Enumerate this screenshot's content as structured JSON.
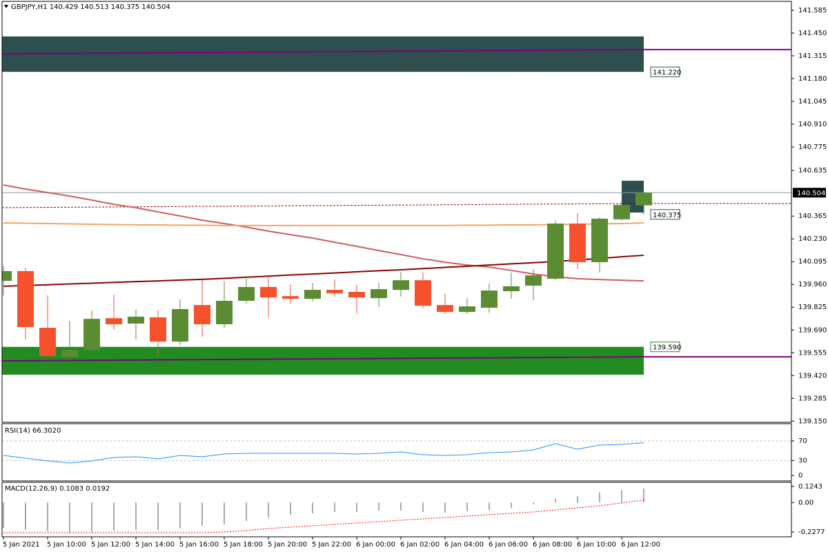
{
  "chart_data": [
    {
      "type": "candlestick",
      "title": "GBPJPY,H1  140.429 140.513 140.375 140.504",
      "categories": [
        "5 Jan 2021",
        null,
        "5 Jan 10:00",
        null,
        "5 Jan 12:00",
        null,
        "5 Jan 14:00",
        null,
        "5 Jan 16:00",
        null,
        "5 Jan 18:00",
        null,
        "5 Jan 20:00",
        null,
        "5 Jan 22:00",
        null,
        "6 Jan 00:00",
        null,
        "6 Jan 02:00",
        null,
        "6 Jan 04:00",
        null,
        "6 Jan 06:00",
        null,
        "6 Jan 08:00",
        null,
        "6 Jan 10:00",
        null,
        "6 Jan 12:00",
        null
      ],
      "open": [
        139.981,
        140.039,
        139.703,
        139.531,
        139.572,
        139.76,
        139.728,
        139.765,
        139.621,
        139.838,
        139.724,
        139.863,
        139.945,
        139.891,
        139.875,
        139.928,
        139.916,
        139.879,
        139.928,
        139.985,
        139.838,
        139.797,
        139.822,
        139.92,
        139.953,
        139.994,
        140.321,
        140.092,
        140.346,
        140.429
      ],
      "high": [
        140.071,
        140.059,
        139.895,
        139.744,
        139.806,
        139.9,
        139.81,
        139.806,
        139.871,
        139.99,
        139.981,
        140.01,
        140.002,
        139.961,
        139.969,
        139.99,
        139.957,
        139.969,
        140.035,
        140.031,
        139.908,
        139.879,
        139.965,
        140.031,
        140.051,
        140.337,
        140.382,
        140.358,
        140.452,
        140.513
      ],
      "low": [
        139.895,
        139.634,
        139.527,
        139.511,
        139.56,
        139.691,
        139.634,
        139.531,
        139.601,
        139.65,
        139.703,
        139.846,
        139.765,
        139.846,
        139.859,
        139.887,
        139.785,
        139.826,
        139.887,
        139.818,
        139.785,
        139.785,
        139.793,
        139.875,
        139.867,
        139.985,
        140.051,
        140.031,
        140.337,
        140.375
      ],
      "close": [
        140.039,
        139.707,
        139.535,
        139.572,
        139.756,
        139.724,
        139.769,
        139.621,
        139.814,
        139.724,
        139.863,
        139.945,
        139.883,
        139.875,
        139.928,
        139.908,
        139.883,
        139.932,
        139.985,
        139.834,
        139.797,
        139.83,
        139.924,
        139.949,
        140.014,
        140.321,
        140.092,
        140.35,
        140.431,
        140.504
      ],
      "up_color": "#5b8c33",
      "down_color": "#f4512c",
      "ylim": [
        139.143,
        141.646
      ],
      "yticks": [
        141.585,
        {
          "value": 141.45,
          "label": "141.450"
        },
        141.315,
        {
          "value": 141.18,
          "label": "141.180"
        },
        141.045,
        {
          "value": 140.91,
          "label": "140.910"
        },
        140.775,
        140.635,
        140.365,
        {
          "value": 140.23,
          "label": "140.230"
        },
        140.095,
        {
          "value": 139.96,
          "label": "139.960"
        },
        139.825,
        {
          "value": 139.69,
          "label": "139.690"
        },
        139.555,
        {
          "value": 139.42,
          "label": "139.420"
        },
        139.285,
        {
          "value": 139.15,
          "label": "139.150"
        }
      ],
      "zones": [
        {
          "top": 141.43,
          "bottom": 141.22,
          "color": "#2f4f4f"
        },
        {
          "top": 139.59,
          "bottom": 139.425,
          "color": "#228b22"
        },
        {
          "top": 140.575,
          "bottom": 140.386,
          "color": "#2f4f4f"
        }
      ],
      "lines": [
        {
          "color": "#cd5c5c",
          "values": [
            140.55,
            140.525,
            140.505,
            140.484,
            140.46,
            140.435,
            140.415,
            140.39,
            140.366,
            140.341,
            140.321,
            140.3,
            140.276,
            140.255,
            140.235,
            140.21,
            140.186,
            140.161,
            140.137,
            140.112,
            140.092,
            140.075,
            140.063,
            140.043,
            140.022,
            140.006,
            139.994,
            139.989,
            139.985,
            139.981
          ]
        },
        {
          "color": "#f4a460",
          "values": [
            140.325,
            140.323,
            140.321,
            140.319,
            140.317,
            140.315,
            140.313,
            140.313,
            140.311,
            140.311,
            140.309,
            140.309,
            140.309,
            140.309,
            140.309,
            140.309,
            140.309,
            140.309,
            140.309,
            140.309,
            140.309,
            140.311,
            140.311,
            140.313,
            140.313,
            140.315,
            140.317,
            140.319,
            140.321,
            140.325
          ]
        },
        {
          "color": "#8b0000",
          "values": [
            139.949,
            139.954,
            139.958,
            139.963,
            139.967,
            139.972,
            139.977,
            139.981,
            139.986,
            139.99,
            139.996,
            140.003,
            140.009,
            140.016,
            140.022,
            140.028,
            140.035,
            140.041,
            140.047,
            140.054,
            140.061,
            140.068,
            140.075,
            140.082,
            140.089,
            140.096,
            140.105,
            140.114,
            140.124,
            140.133
          ]
        }
      ],
      "levels": [
        {
          "color": "#800080",
          "style": "solid",
          "values": [
            141.327,
            141.352
          ]
        },
        {
          "color": "#800080",
          "style": "solid",
          "values": [
            139.507,
            139.531
          ]
        },
        {
          "color": "#8b0000",
          "style": "dashed",
          "values": [
            140.415,
            140.44
          ]
        }
      ],
      "price_labels": [
        {
          "value": 141.22,
          "label": "141.220",
          "color": "#2f4f4f"
        },
        {
          "value": 140.375,
          "label": "140.375",
          "color": "#2f4f4f"
        },
        {
          "value": 139.59,
          "label": "139.590",
          "color": "#228b22"
        }
      ],
      "last_price": {
        "value": 140.504,
        "label": "140.504"
      }
    },
    {
      "type": "line",
      "title": "RSI(14) 66.3020",
      "color": "#1e90ff",
      "values": [
        40.6,
        35.0,
        29.4,
        25.2,
        29.4,
        36.4,
        37.8,
        33.6,
        40.6,
        37.8,
        43.4,
        44.8,
        44.8,
        44.8,
        44.8,
        44.8,
        43.4,
        44.8,
        47.6,
        42.0,
        40.6,
        42.0,
        46.2,
        47.6,
        51.8,
        64.4,
        53.2,
        61.6,
        63.0,
        66.3
      ],
      "ylim": [
        0,
        100
      ],
      "yticks": [
        0,
        30,
        70
      ]
    },
    {
      "type": "bar",
      "title": "MACD(12,26,9) 0.1083 0.0192",
      "color": "#a9a9a9",
      "values": [
        -0.1957,
        -0.2115,
        -0.2222,
        -0.2328,
        -0.2275,
        -0.2168,
        -0.2115,
        -0.2115,
        -0.2008,
        -0.1795,
        -0.1689,
        -0.1422,
        -0.1156,
        -0.0942,
        -0.0836,
        -0.0729,
        -0.0729,
        -0.0623,
        -0.0623,
        -0.0729,
        -0.0782,
        -0.0676,
        -0.0569,
        -0.0409,
        -0.0143,
        0.0284,
        0.0497,
        0.0763,
        0.0977,
        0.1083
      ],
      "signal": {
        "color": "#ff0000",
        "values": [
          -0.2328,
          -0.2328,
          -0.2328,
          -0.2328,
          -0.2328,
          -0.2328,
          -0.2328,
          -0.2328,
          -0.2328,
          -0.2328,
          -0.2275,
          -0.2168,
          -0.2008,
          -0.1902,
          -0.1795,
          -0.1689,
          -0.1582,
          -0.1475,
          -0.1369,
          -0.1262,
          -0.1156,
          -0.1049,
          -0.0942,
          -0.0836,
          -0.0729,
          -0.0569,
          -0.0409,
          -0.0249,
          -0.0036,
          0.0192
        ]
      },
      "ylim": [
        -0.265,
        0.1563
      ],
      "yticks": [
        0.1243,
        {
          "value": 0,
          "label": "0.00"
        },
        -0.2277
      ]
    }
  ]
}
